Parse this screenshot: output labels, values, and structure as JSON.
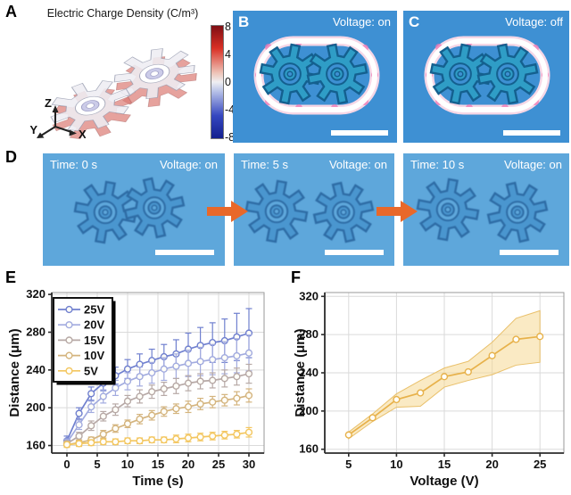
{
  "panels": {
    "A": {
      "label": "A",
      "title": "Electric Charge Density (C/m³)",
      "colorbar_ticks": [
        "8",
        "4",
        "0",
        "-4",
        "-8"
      ],
      "triad": {
        "up": "Z",
        "left": "Y",
        "right": "X"
      }
    },
    "B": {
      "label": "B",
      "voltage": "Voltage: on"
    },
    "C": {
      "label": "C",
      "voltage": "Voltage: off"
    },
    "D": {
      "label": "D",
      "frames": [
        {
          "time": "Time: 0 s",
          "voltage": "Voltage: on"
        },
        {
          "time": "Time: 5 s",
          "voltage": "Voltage: on"
        },
        {
          "time": "Time: 10 s",
          "voltage": "Voltage: on"
        }
      ]
    },
    "E": {
      "label": "E"
    },
    "F": {
      "label": "F"
    }
  },
  "colors": {
    "micro_bg_bc": "#3e90d3",
    "micro_bg_d": "#5ea7db",
    "gear_fill_bc": "#2f9dc6",
    "gear_stroke_bc": "#14608f",
    "gear_fill_d": "#4a96cf",
    "gear_stroke_d": "#2e6ca5",
    "channel_ring": "#ffffff",
    "channel_pink": "#ee78b4",
    "arrow": "#e8682a",
    "scale_bar": "#ffffff"
  },
  "chart_data": [
    {
      "id": "E",
      "type": "line",
      "x": [
        0,
        2,
        4,
        6,
        8,
        10,
        12,
        14,
        16,
        18,
        20,
        22,
        24,
        26,
        28,
        30
      ],
      "series": [
        {
          "name": "25V",
          "color": "#7080cf",
          "values": [
            165,
            194,
            215,
            226,
            234,
            241,
            246,
            250,
            254,
            257,
            262,
            266,
            269,
            271,
            275,
            279
          ],
          "errors": [
            5,
            6,
            7,
            8,
            9,
            10,
            11,
            12,
            13,
            15,
            17,
            19,
            21,
            23,
            25,
            26
          ]
        },
        {
          "name": "20V",
          "color": "#a2abdf",
          "values": [
            163,
            182,
            201,
            212,
            221,
            228,
            233,
            237,
            241,
            244,
            247,
            249,
            251,
            253,
            255,
            258
          ],
          "errors": [
            4,
            5,
            6,
            7,
            8,
            9,
            10,
            11,
            12,
            13,
            14,
            15,
            16,
            17,
            18,
            19
          ]
        },
        {
          "name": "15V",
          "color": "#b7a9a6",
          "values": [
            162,
            170,
            181,
            191,
            198,
            207,
            212,
            217,
            220,
            223,
            226,
            228,
            229,
            231,
            233,
            236
          ],
          "errors": [
            3,
            4,
            5,
            5,
            6,
            6,
            7,
            7,
            7,
            8,
            8,
            8,
            8,
            9,
            9,
            10
          ]
        },
        {
          "name": "10V",
          "color": "#d4b47e",
          "values": [
            161,
            163,
            166,
            172,
            178,
            183,
            188,
            192,
            196,
            199,
            201,
            204,
            206,
            208,
            210,
            213
          ],
          "errors": [
            2,
            3,
            3,
            4,
            4,
            4,
            5,
            5,
            5,
            5,
            6,
            6,
            6,
            6,
            7,
            7
          ]
        },
        {
          "name": "5V",
          "color": "#f3c65f",
          "values": [
            161,
            162,
            163,
            164,
            164,
            165,
            165,
            166,
            166,
            167,
            168,
            169,
            170,
            171,
            172,
            174
          ],
          "errors": [
            3,
            3,
            3,
            3,
            3,
            3,
            3,
            3,
            3,
            4,
            4,
            4,
            4,
            4,
            4,
            5
          ]
        }
      ],
      "xlabel": "Time (s)",
      "ylabel": "Distance (μm)",
      "xlim": [
        -2.5,
        32.5
      ],
      "ylim": [
        152,
        322
      ],
      "xticks": [
        0,
        5,
        10,
        15,
        20,
        25,
        30
      ],
      "yticks": [
        160,
        200,
        240,
        280,
        320
      ],
      "grid": true,
      "legend": "upper-left"
    },
    {
      "id": "F",
      "type": "line-band",
      "x": [
        5,
        7.5,
        10,
        12.5,
        15,
        17.5,
        20,
        22.5,
        25
      ],
      "series": [
        {
          "name": "distance",
          "color": "#e7b14a",
          "values": [
            175,
            193,
            212,
            219,
            236,
            241,
            258,
            275,
            278
          ]
        }
      ],
      "band": {
        "lower": [
          171,
          189,
          204,
          205,
          225,
          232,
          238,
          248,
          251
        ],
        "upper": [
          178,
          197,
          218,
          232,
          245,
          252,
          272,
          297,
          305
        ],
        "color": "#f5d894"
      },
      "xlabel": "Voltage (V)",
      "ylabel": "Distance (μm)",
      "xlim": [
        2.5,
        27.5
      ],
      "ylim": [
        156,
        324
      ],
      "xticks": [
        5,
        10,
        15,
        20,
        25
      ],
      "yticks": [
        160,
        200,
        240,
        280,
        320
      ],
      "grid": true,
      "legend": "none"
    }
  ]
}
